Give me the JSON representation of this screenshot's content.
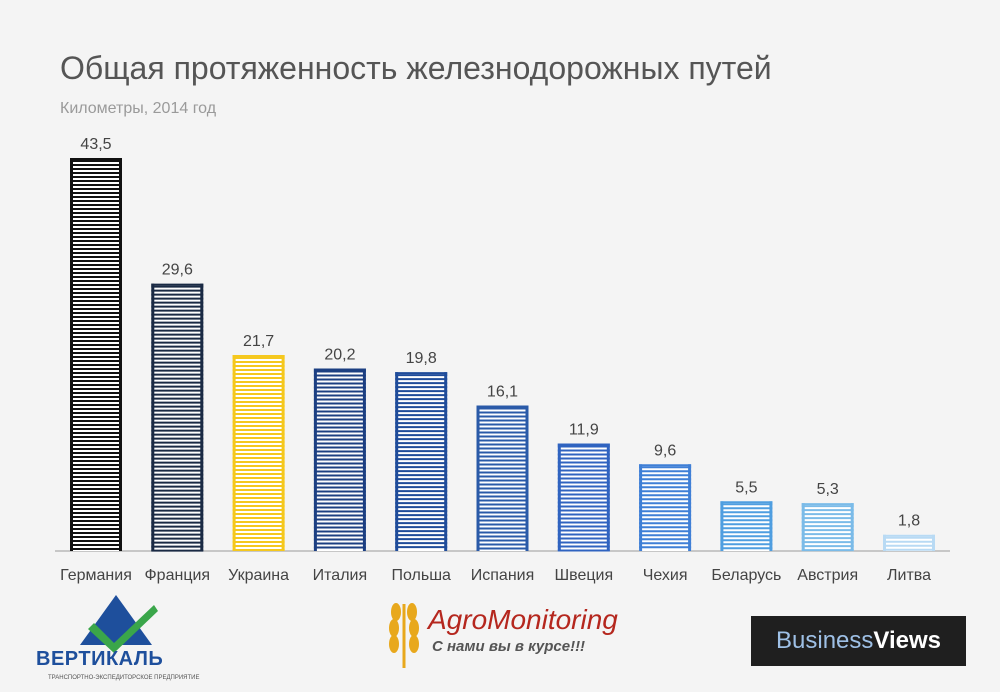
{
  "title": "Общая протяженность железнодорожных путей",
  "subtitle": "Километры, 2014 год",
  "chart_data": {
    "type": "bar",
    "title": "Общая протяженность железнодорожных путей",
    "subtitle": "Километры, 2014 год",
    "xlabel": "",
    "ylabel": "",
    "ylim": [
      0,
      43.5
    ],
    "grid": false,
    "legend": "none",
    "categories": [
      "Германия",
      "Франция",
      "Украина",
      "Италия",
      "Польша",
      "Испания",
      "Швеция",
      "Чехия",
      "Беларусь",
      "Австрия",
      "Литва"
    ],
    "values": [
      43.5,
      29.6,
      21.7,
      20.2,
      19.8,
      16.1,
      11.9,
      9.6,
      5.5,
      5.3,
      1.8
    ],
    "value_labels": [
      "43,5",
      "29,6",
      "21,7",
      "20,2",
      "19,8",
      "16,1",
      "11,9",
      "9,6",
      "5,5",
      "5,3",
      "1,8"
    ],
    "bar_colors": [
      "#111111",
      "#1a2a44",
      "#f5c81e",
      "#1c3f82",
      "#1f4c9a",
      "#2a5aa8",
      "#2f63c0",
      "#3f7fd6",
      "#4f9ee0",
      "#7bbbe8",
      "#b8daf4"
    ]
  },
  "logos": {
    "vertikal": {
      "name": "ВЕРТИКАЛЬ",
      "tagline": "ТРАНСПОРТНО-ЭКСПЕДИТОРСКОЕ ПРЕДПРИЯТИЕ"
    },
    "agro": {
      "name": "AgroMonitoring",
      "tagline": "С нами вы в курсе!!!"
    },
    "bv": {
      "part1": "Business",
      "part2": "Views"
    }
  }
}
